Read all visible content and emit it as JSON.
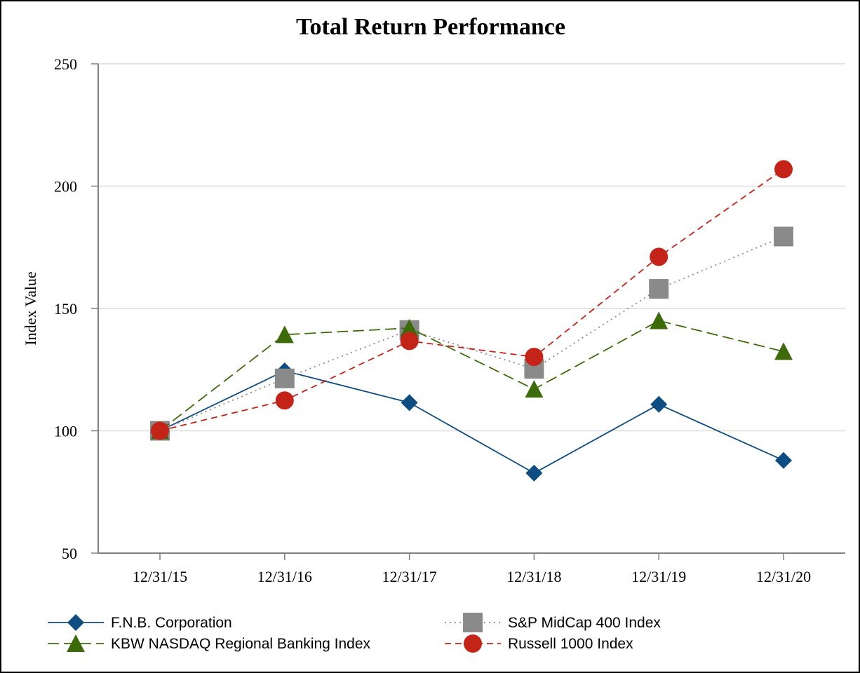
{
  "chart_data": {
    "type": "line",
    "title": "Total Return Performance",
    "xlabel": "",
    "ylabel": "Index Value",
    "categories": [
      "12/31/15",
      "12/31/16",
      "12/31/17",
      "12/31/18",
      "12/31/19",
      "12/31/20"
    ],
    "ylim": [
      50,
      250
    ],
    "yticks": [
      50,
      100,
      150,
      200,
      250
    ],
    "grid": true,
    "legend": "bottom",
    "series": [
      {
        "name": "F.N.B. Corporation",
        "values": [
          100,
          124.5,
          111.5,
          82.7,
          110.8,
          87.9
        ],
        "color": "#0e4d82",
        "marker": "diamond",
        "dash": "solid"
      },
      {
        "name": "S&P MidCap 400 Index",
        "values": [
          100,
          121.4,
          141.2,
          125.3,
          158.0,
          179.4
        ],
        "color": "#8a8a8a",
        "marker": "square",
        "dash": "dotted"
      },
      {
        "name": "KBW NASDAQ Regional Banking Index",
        "values": [
          100,
          139.3,
          142.0,
          117.0,
          145.0,
          132.4
        ],
        "color": "#3e6b0a",
        "marker": "triangle",
        "dash": "dashed"
      },
      {
        "name": "Russell 1000 Index",
        "values": [
          100,
          112.4,
          136.7,
          130.2,
          171.1,
          206.9
        ],
        "color": "#c42418",
        "marker": "circle",
        "dash": "shortdash"
      }
    ]
  }
}
